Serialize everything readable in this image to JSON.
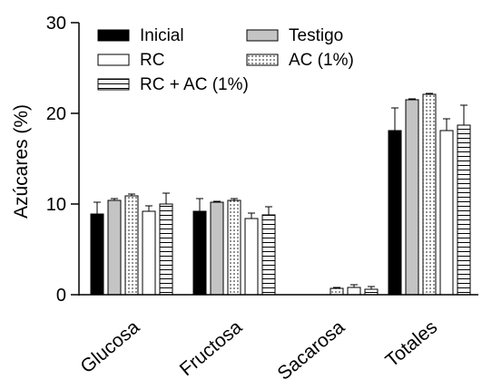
{
  "chart_data": {
    "type": "bar",
    "title": "",
    "xlabel": "",
    "ylabel": "Azúcares (%)",
    "ylim": [
      0,
      30
    ],
    "yticks": [
      0,
      10,
      20,
      30
    ],
    "grid": false,
    "legend_position": "top-left",
    "categories": [
      "Glucosa",
      "Fructosa",
      "Sacarosa",
      "Totales"
    ],
    "series": [
      {
        "name": "Inicial",
        "pattern": "solid-black",
        "values": [
          8.9,
          9.2,
          null,
          18.1
        ],
        "errors": [
          1.3,
          1.4,
          null,
          2.5
        ]
      },
      {
        "name": "Testigo",
        "pattern": "gray",
        "values": [
          10.4,
          10.2,
          null,
          21.5
        ],
        "errors": [
          0.2,
          0.1,
          null,
          0.1
        ]
      },
      {
        "name": "AC (1%)",
        "pattern": "dotted",
        "values": [
          10.9,
          10.4,
          0.7,
          22.1
        ],
        "errors": [
          0.2,
          0.2,
          0.1,
          0.1
        ]
      },
      {
        "name": "RC",
        "pattern": "white",
        "values": [
          9.2,
          8.4,
          0.8,
          18.1
        ],
        "errors": [
          0.6,
          0.6,
          0.3,
          1.3
        ]
      },
      {
        "name": "RC + AC (1%)",
        "pattern": "horizontal-lines",
        "values": [
          10.0,
          8.8,
          0.6,
          18.7
        ],
        "errors": [
          1.2,
          0.9,
          0.3,
          2.2
        ]
      }
    ],
    "legend_order": [
      "Inicial",
      "Testigo",
      "RC",
      "AC (1%)",
      "RC + AC (1%)"
    ]
  }
}
